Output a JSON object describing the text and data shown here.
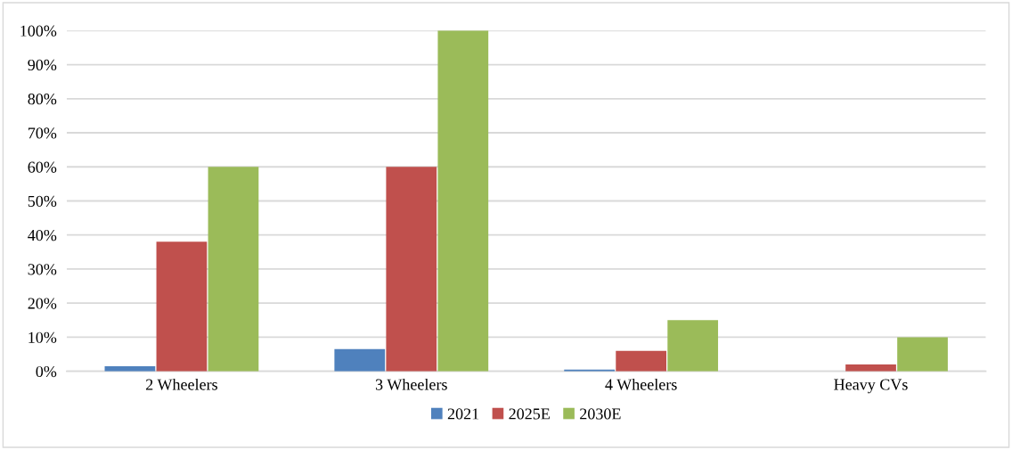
{
  "chart_data": {
    "type": "bar",
    "categories": [
      "2 Wheelers",
      "3 Wheelers",
      "4 Wheelers",
      "Heavy CVs"
    ],
    "series": [
      {
        "name": "2021",
        "color": "#4f81bd",
        "values": [
          1.5,
          6.5,
          0.5,
          0
        ]
      },
      {
        "name": "2025E",
        "color": "#c0504d",
        "values": [
          38,
          60,
          6,
          2
        ]
      },
      {
        "name": "2030E",
        "color": "#9bbb59",
        "values": [
          60,
          100,
          15,
          10
        ]
      }
    ],
    "ylim": [
      0,
      100
    ],
    "yticks": [
      {
        "value": 0,
        "label": "0%"
      },
      {
        "value": 10,
        "label": "10%"
      },
      {
        "value": 20,
        "label": "20%"
      },
      {
        "value": 30,
        "label": "30%"
      },
      {
        "value": 40,
        "label": "40%"
      },
      {
        "value": 50,
        "label": "50%"
      },
      {
        "value": 60,
        "label": "60%"
      },
      {
        "value": 70,
        "label": "70%"
      },
      {
        "value": 80,
        "label": "80%"
      },
      {
        "value": 90,
        "label": "90%"
      },
      {
        "value": 100,
        "label": "100%"
      }
    ],
    "grid": "y",
    "legend": "bottom"
  }
}
